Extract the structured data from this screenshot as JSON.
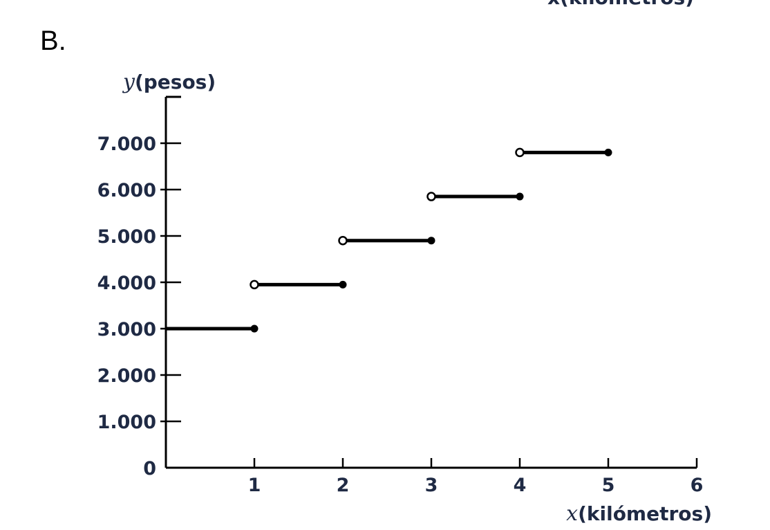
{
  "panel_label": "B.",
  "top_cut_label": "x(kilómetros)",
  "chart_data": {
    "type": "line",
    "ylabel_var": "y",
    "ylabel": "(pesos)",
    "xlabel_var": "x",
    "xlabel": "(kilómetros)",
    "xlim": [
      0,
      6
    ],
    "ylim": [
      0,
      7000
    ],
    "x_ticks": [
      "1",
      "2",
      "3",
      "4",
      "5",
      "6"
    ],
    "y_ticks": [
      "0",
      "1.000",
      "2.000",
      "3.000",
      "4.000",
      "5.000",
      "6.000",
      "7.000"
    ],
    "grid": false,
    "series": [
      {
        "segments": [
          {
            "x_start": 0,
            "x_end": 1,
            "y": 3000,
            "start_open": false,
            "end_closed": true,
            "start_marker": false
          },
          {
            "x_start": 1,
            "x_end": 2,
            "y": 3950,
            "start_open": true,
            "end_closed": true,
            "start_marker": true
          },
          {
            "x_start": 2,
            "x_end": 3,
            "y": 4900,
            "start_open": true,
            "end_closed": true,
            "start_marker": true
          },
          {
            "x_start": 3,
            "x_end": 4,
            "y": 5850,
            "start_open": true,
            "end_closed": true,
            "start_marker": true
          },
          {
            "x_start": 4,
            "x_end": 5,
            "y": 6800,
            "start_open": true,
            "end_closed": true,
            "start_marker": true
          }
        ]
      }
    ]
  }
}
